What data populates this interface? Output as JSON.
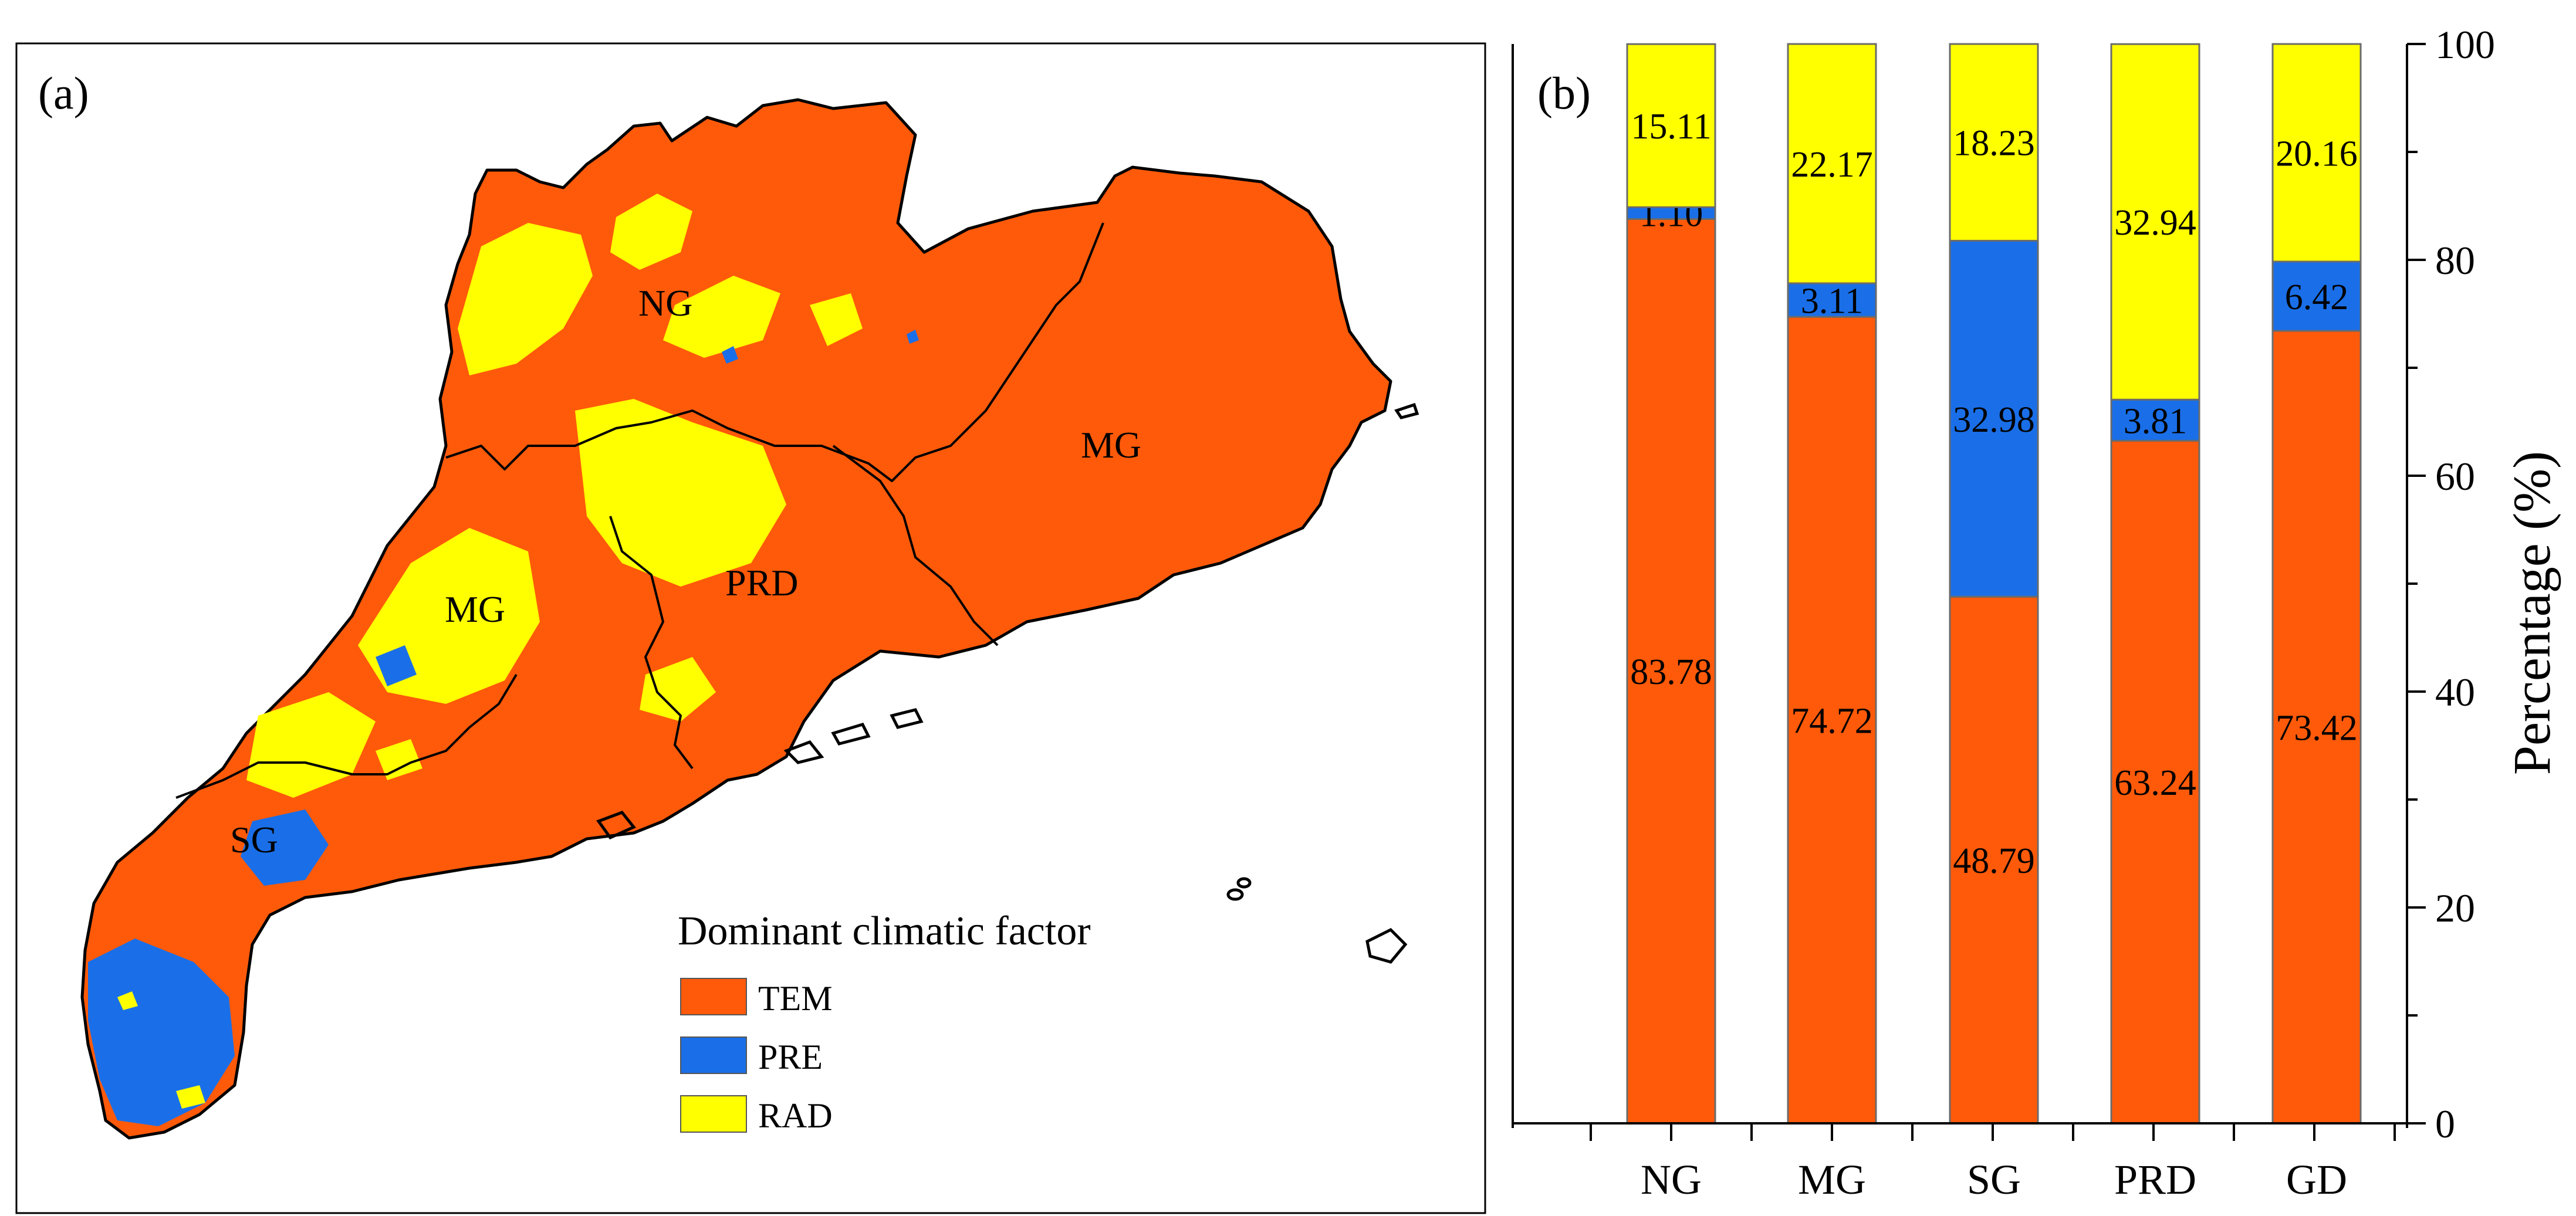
{
  "panel_a": {
    "label": "(a)",
    "regions": [
      "NG",
      "MG",
      "PRD",
      "MG",
      "SG"
    ],
    "legend": {
      "title": "Dominant climatic factor",
      "items": [
        {
          "name": "TEM",
          "color": "#FF5A0A"
        },
        {
          "name": "PRE",
          "color": "#1A6FE8"
        },
        {
          "name": "RAD",
          "color": "#FFFF00"
        }
      ]
    }
  },
  "chart_data": {
    "type": "bar",
    "stacked": true,
    "panel_label": "(b)",
    "categories": [
      "NG",
      "MG",
      "SG",
      "PRD",
      "GD"
    ],
    "series": [
      {
        "name": "TEM",
        "color": "#FF5A0A",
        "values": [
          83.78,
          74.72,
          48.79,
          63.24,
          73.42
        ],
        "labels": [
          "83.78",
          "74.72",
          "48.79",
          "63.24",
          "73.42"
        ]
      },
      {
        "name": "PRE",
        "color": "#1A6FE8",
        "values": [
          1.1,
          3.11,
          32.98,
          3.81,
          6.42
        ],
        "labels": [
          "1.10",
          "3.11",
          "32.98",
          "3.81",
          "6.42"
        ]
      },
      {
        "name": "RAD",
        "color": "#FFFF00",
        "values": [
          15.11,
          22.17,
          18.23,
          32.94,
          20.16
        ],
        "labels": [
          "15.11",
          "22.17",
          "18.23",
          "32.94",
          "20.16"
        ]
      }
    ],
    "ylabel": "Percentage (%)",
    "ylim": [
      0,
      100
    ],
    "yticks": [
      "0",
      "20",
      "40",
      "60",
      "80",
      "100"
    ],
    "grid": false
  }
}
